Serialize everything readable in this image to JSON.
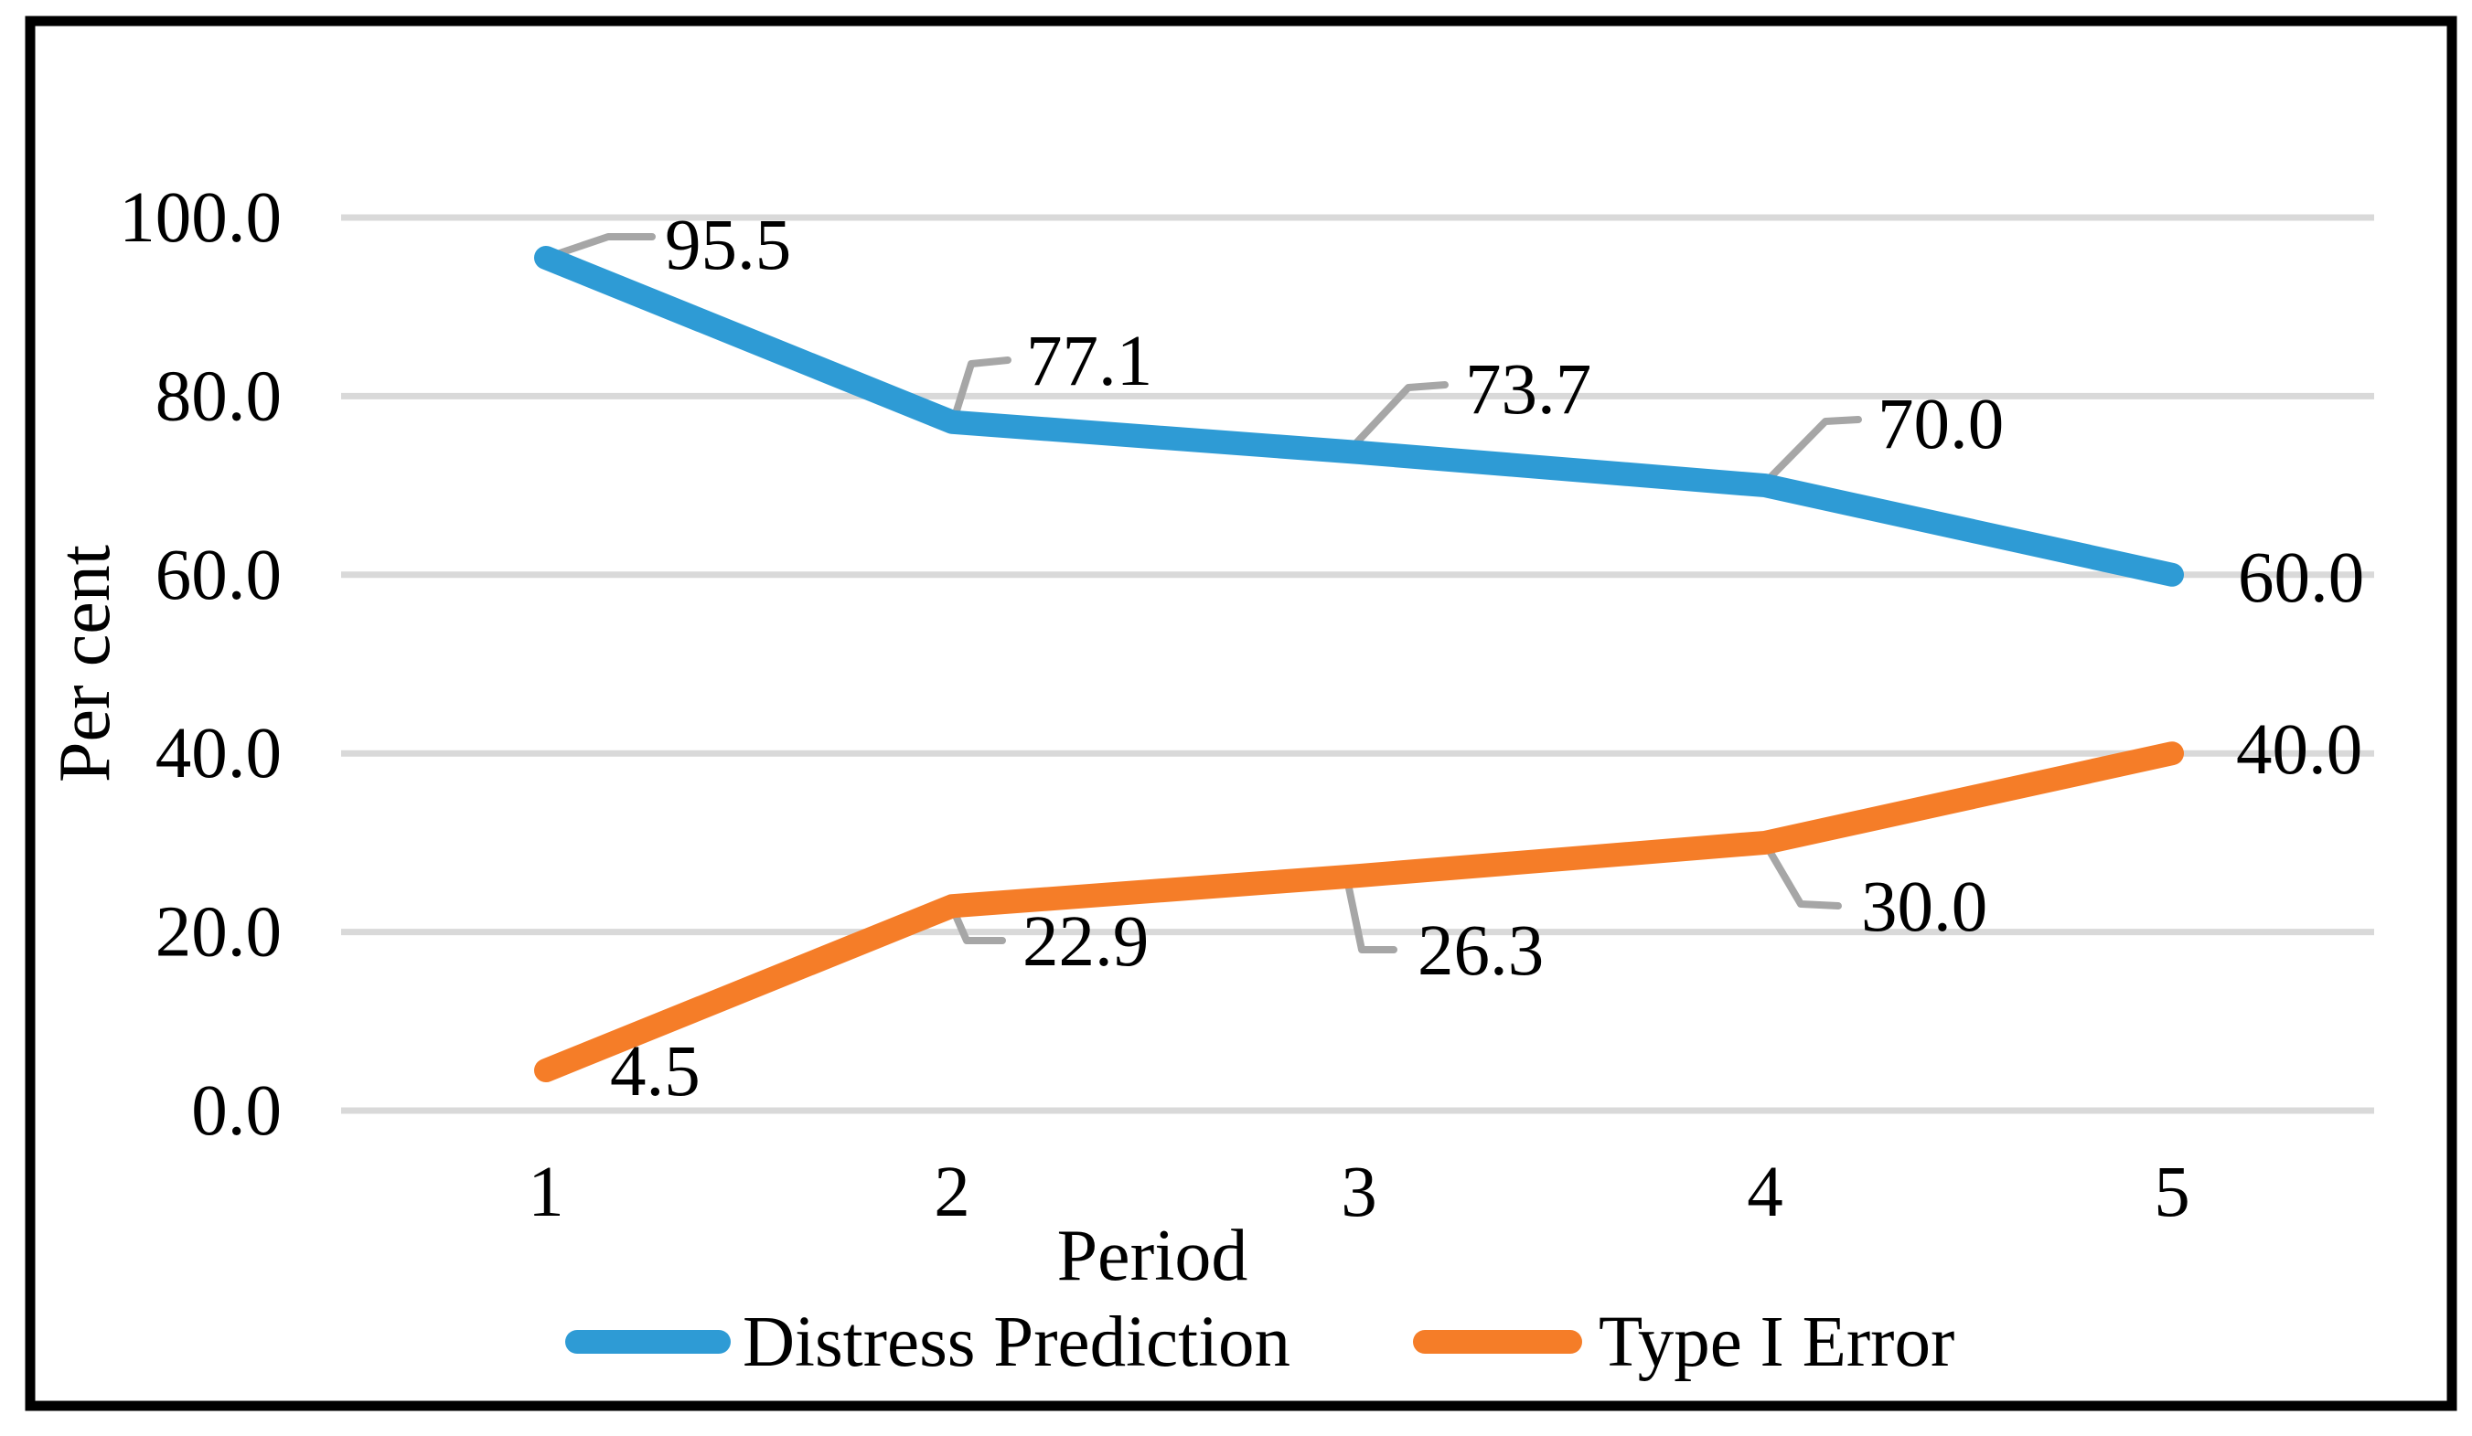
{
  "chart_data": {
    "type": "line",
    "title": "",
    "xlabel": "Period",
    "ylabel": "Per cent",
    "x": [
      1,
      2,
      3,
      4,
      5
    ],
    "xticks": [
      "1",
      "2",
      "3",
      "4",
      "5"
    ],
    "yticks": [
      "0.0",
      "20.0",
      "40.0",
      "60.0",
      "80.0",
      "100.0"
    ],
    "ylim": [
      0,
      100
    ],
    "grid": true,
    "legend_position": "bottom",
    "series": [
      {
        "name": "Distress Prediction",
        "color": "#2E9BD5",
        "values": [
          95.5,
          77.1,
          73.7,
          70.0,
          60.0
        ],
        "labels": [
          "95.5",
          "77.1",
          "73.7",
          "70.0",
          "60.0"
        ]
      },
      {
        "name": "Type I Error",
        "color": "#F57D28",
        "values": [
          4.5,
          22.9,
          26.3,
          30.0,
          40.0
        ],
        "labels": [
          "4.5",
          "22.9",
          "26.3",
          "30.0",
          "40.0"
        ]
      }
    ]
  },
  "colors": {
    "gridline": "#D9D9D9",
    "leader": "#A6A6A6",
    "border": "#000000",
    "background": "#FFFFFF",
    "text": "#000000"
  }
}
